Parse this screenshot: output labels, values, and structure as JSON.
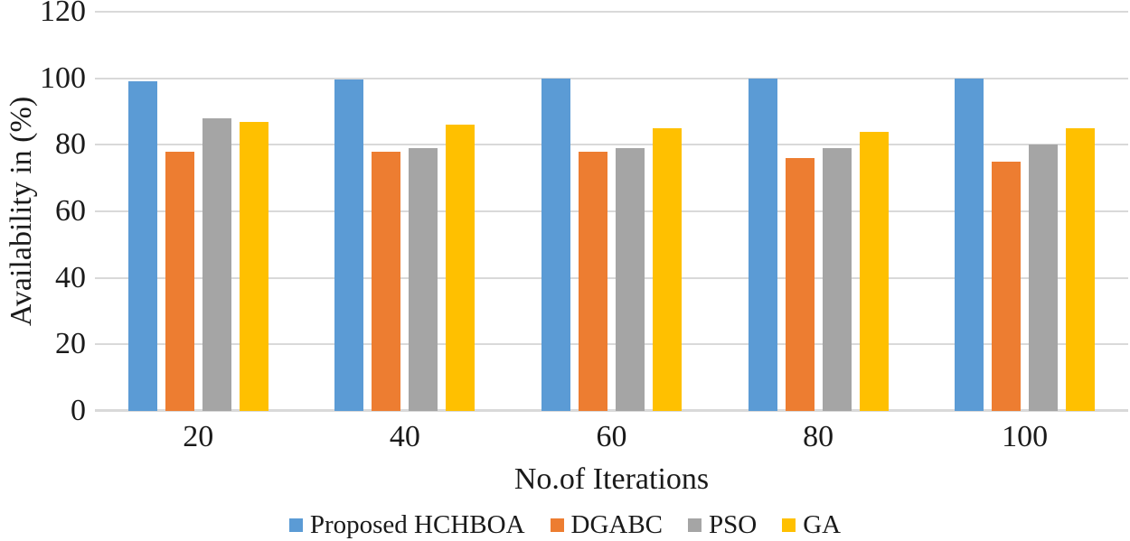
{
  "chart_data": {
    "type": "bar",
    "title": "",
    "xlabel": "No.of Iterations",
    "ylabel": "Availability in (%)",
    "categories": [
      "20",
      "40",
      "60",
      "80",
      "100"
    ],
    "series": [
      {
        "name": "Proposed HCHBOA",
        "color": "#5B9BD5",
        "values": [
          99.2,
          99.6,
          99.8,
          99.8,
          100
        ]
      },
      {
        "name": "DGABC",
        "color": "#ED7D31",
        "values": [
          78,
          78,
          78,
          76,
          75
        ]
      },
      {
        "name": "PSO",
        "color": "#A5A5A5",
        "values": [
          88,
          79,
          79,
          79,
          80
        ]
      },
      {
        "name": "GA",
        "color": "#FFC000",
        "values": [
          87,
          86,
          85,
          84,
          85
        ]
      }
    ],
    "ylim": [
      0,
      120
    ],
    "yticks": [
      0,
      20,
      40,
      60,
      80,
      100,
      120
    ],
    "grid": "horizontal",
    "gridline_color": "#D9D9D9",
    "text_color": "#1a1a1a",
    "background": "#FFFFFF",
    "legend_position": "bottom"
  }
}
